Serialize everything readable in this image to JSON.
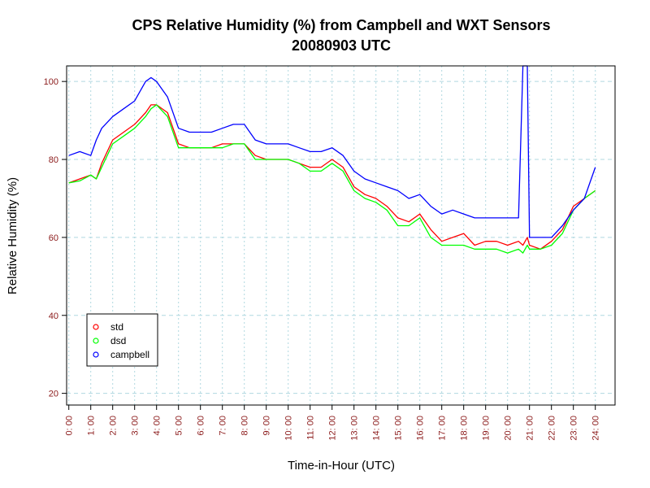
{
  "chart_data": {
    "type": "line",
    "title": "CPS Relative Humidity (%) from Campbell and WXT Sensors",
    "subtitle": "20080903  UTC",
    "xlabel": "Time-in-Hour (UTC)",
    "ylabel": "Relative Humidity (%)",
    "x_unit": "hours UTC",
    "xlim": [
      -0.1,
      24.9
    ],
    "ylim": [
      17,
      104
    ],
    "x_ticks": [
      0,
      1,
      2,
      3,
      4,
      5,
      6,
      7,
      8,
      9,
      10,
      11,
      12,
      13,
      14,
      15,
      16,
      17,
      18,
      19,
      20,
      21,
      22,
      23,
      24
    ],
    "x_tick_labels": [
      "0: 00",
      "1: 00",
      "2: 00",
      "3: 00",
      "4: 00",
      "5: 00",
      "6: 00",
      "7: 00",
      "8: 00",
      "9: 00",
      "10: 00",
      "11: 00",
      "12: 00",
      "13: 00",
      "14: 00",
      "15: 00",
      "16: 00",
      "17: 00",
      "18: 00",
      "19: 00",
      "20: 00",
      "21: 00",
      "22: 00",
      "23: 00",
      "24: 00"
    ],
    "y_ticks": [
      20,
      40,
      60,
      80,
      100
    ],
    "y_tick_labels": [
      "20",
      "40",
      "60",
      "80",
      "100"
    ],
    "grid": true,
    "legend_position": "bottom-left",
    "x": [
      0,
      0.5,
      1,
      1.25,
      1.5,
      2,
      2.5,
      3,
      3.5,
      3.75,
      4,
      4.5,
      5,
      5.5,
      6,
      6.5,
      7,
      7.5,
      8,
      8.5,
      9,
      9.5,
      10,
      10.5,
      11,
      11.5,
      12,
      12.5,
      13,
      13.5,
      14,
      14.5,
      15,
      15.5,
      16,
      16.5,
      17,
      17.5,
      18,
      18.5,
      19,
      19.5,
      20,
      20.5,
      20.7,
      20.9,
      21,
      21.5,
      22,
      22.5,
      23,
      23.5,
      24
    ],
    "series": [
      {
        "name": "std",
        "color": "#ff0000",
        "values": [
          74,
          75,
          76,
          75,
          79,
          85,
          87,
          89,
          92,
          94,
          94,
          92,
          84,
          83,
          83,
          83,
          84,
          84,
          84,
          81,
          80,
          80,
          80,
          79,
          78,
          78,
          80,
          78,
          73,
          71,
          70,
          68,
          65,
          64,
          66,
          62,
          59,
          60,
          61,
          58,
          59,
          59,
          58,
          59,
          58,
          60,
          58,
          57,
          59,
          62,
          68,
          70,
          72
        ]
      },
      {
        "name": "dsd",
        "color": "#00ff00",
        "values": [
          74,
          74.5,
          76,
          75,
          78,
          84,
          86,
          88,
          91,
          93,
          94,
          91,
          83,
          83,
          83,
          83,
          83,
          84,
          84,
          80,
          80,
          80,
          80,
          79,
          77,
          77,
          79,
          77,
          72,
          70,
          69,
          67,
          63,
          63,
          65,
          60,
          58,
          58,
          58,
          57,
          57,
          57,
          56,
          57,
          56,
          58,
          57,
          57,
          58,
          61,
          67,
          70,
          72
        ]
      },
      {
        "name": "campbell",
        "color": "#0000ff",
        "values": [
          81,
          82,
          81,
          85,
          88,
          91,
          93,
          95,
          100,
          101,
          100,
          96,
          88,
          87,
          87,
          87,
          88,
          89,
          89,
          85,
          84,
          84,
          84,
          83,
          82,
          82,
          83,
          81,
          77,
          75,
          74,
          73,
          72,
          70,
          71,
          68,
          66,
          67,
          66,
          65,
          65,
          65,
          65,
          65,
          104,
          104,
          60,
          60,
          60,
          63,
          67,
          70,
          78
        ]
      }
    ]
  }
}
